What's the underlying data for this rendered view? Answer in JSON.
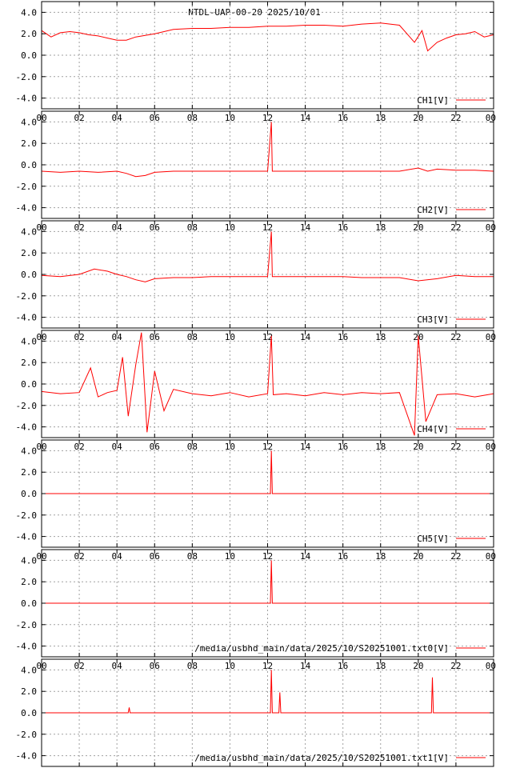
{
  "chart_title": "NTDL-UAP-00-20 2025/10/01",
  "colors": {
    "trace": "#ff0000",
    "grid": "#a0a0a0",
    "frame": "#000000"
  },
  "chart_data": [
    {
      "type": "line",
      "legend": "CH1[V]",
      "x_ticks": [
        "00",
        "02",
        "04",
        "06",
        "08",
        "10",
        "12",
        "14",
        "16",
        "18",
        "20",
        "22",
        "00"
      ],
      "xlim": [
        0,
        24
      ],
      "y_ticks": [
        "4.0",
        "2.0",
        "0.0",
        "-2.0",
        "-4.0"
      ],
      "ylim": [
        -5,
        5
      ],
      "grid": true,
      "legend_position": "bottom-right",
      "x": [
        0,
        0.5,
        1,
        1.5,
        2,
        2.5,
        3,
        3.5,
        4,
        4.5,
        5,
        6,
        7,
        8,
        9,
        10,
        11,
        12,
        13,
        14,
        15,
        16,
        17,
        18,
        19,
        19.8,
        20.2,
        20.5,
        21,
        21.5,
        22,
        22.5,
        23,
        23.5,
        24
      ],
      "values": [
        2.3,
        1.7,
        2.1,
        2.2,
        2.1,
        1.9,
        1.8,
        1.6,
        1.4,
        1.4,
        1.7,
        2.0,
        2.4,
        2.5,
        2.5,
        2.6,
        2.6,
        2.7,
        2.7,
        2.8,
        2.8,
        2.7,
        2.9,
        3.0,
        2.8,
        1.2,
        2.3,
        0.4,
        1.2,
        1.6,
        1.9,
        2.0,
        2.2,
        1.7,
        1.9
      ]
    },
    {
      "type": "line",
      "legend": "CH2[V]",
      "x_ticks": [
        "00",
        "02",
        "04",
        "06",
        "08",
        "10",
        "12",
        "14",
        "16",
        "18",
        "20",
        "22",
        "00"
      ],
      "xlim": [
        0,
        24
      ],
      "y_ticks": [
        "4.0",
        "2.0",
        "0.0",
        "-2.0",
        "-4.0"
      ],
      "ylim": [
        -5,
        5
      ],
      "grid": true,
      "legend_position": "bottom-right",
      "x": [
        0,
        1,
        2,
        3,
        4,
        4.5,
        5,
        5.5,
        6,
        7,
        8,
        9,
        10,
        11,
        12,
        12.2,
        12.25,
        12.3,
        13,
        14,
        15,
        16,
        17,
        18,
        19,
        20,
        20.5,
        21,
        22,
        23,
        24
      ],
      "values": [
        -0.6,
        -0.7,
        -0.6,
        -0.7,
        -0.6,
        -0.8,
        -1.1,
        -1.0,
        -0.7,
        -0.6,
        -0.6,
        -0.6,
        -0.6,
        -0.6,
        -0.6,
        4.0,
        -0.6,
        -0.6,
        -0.6,
        -0.6,
        -0.6,
        -0.6,
        -0.6,
        -0.6,
        -0.6,
        -0.3,
        -0.6,
        -0.4,
        -0.5,
        -0.5,
        -0.6
      ]
    },
    {
      "type": "line",
      "legend": "CH3[V]",
      "x_ticks": [
        "00",
        "02",
        "04",
        "06",
        "08",
        "10",
        "12",
        "14",
        "16",
        "18",
        "20",
        "22",
        "00"
      ],
      "xlim": [
        0,
        24
      ],
      "y_ticks": [
        "4.0",
        "2.0",
        "0.0",
        "-2.0",
        "-4.0"
      ],
      "ylim": [
        -5,
        5
      ],
      "grid": true,
      "legend_position": "bottom-right",
      "x": [
        0,
        1,
        2,
        2.8,
        3.5,
        4,
        4.5,
        5,
        5.5,
        6,
        7,
        8,
        9,
        10,
        11,
        12,
        12.2,
        12.25,
        12.3,
        13,
        14,
        15,
        16,
        17,
        18,
        19,
        20,
        21,
        22,
        23,
        24
      ],
      "values": [
        -0.1,
        -0.2,
        0.0,
        0.5,
        0.3,
        0.0,
        -0.2,
        -0.5,
        -0.7,
        -0.4,
        -0.3,
        -0.3,
        -0.2,
        -0.2,
        -0.2,
        -0.2,
        4.0,
        -0.2,
        -0.2,
        -0.2,
        -0.2,
        -0.2,
        -0.2,
        -0.3,
        -0.3,
        -0.3,
        -0.6,
        -0.4,
        -0.1,
        -0.2,
        -0.2
      ]
    },
    {
      "type": "line",
      "legend": "CH4[V]",
      "x_ticks": [
        "00",
        "02",
        "04",
        "06",
        "08",
        "10",
        "12",
        "14",
        "16",
        "18",
        "20",
        "22",
        "00"
      ],
      "xlim": [
        0,
        24
      ],
      "y_ticks": [
        "4.0",
        "2.0",
        "0.0",
        "-2.0",
        "-4.0"
      ],
      "ylim": [
        -5,
        5
      ],
      "grid": true,
      "legend_position": "bottom-right",
      "x": [
        0,
        1,
        2,
        2.6,
        3,
        3.5,
        4,
        4.3,
        4.6,
        5,
        5.3,
        5.6,
        6,
        6.5,
        7,
        8,
        9,
        10,
        11,
        12,
        12.2,
        12.3,
        13,
        14,
        15,
        16,
        17,
        18,
        19,
        19.8,
        20,
        20.4,
        21,
        22,
        23,
        24
      ],
      "values": [
        -0.7,
        -0.9,
        -0.8,
        1.5,
        -1.2,
        -0.8,
        -0.6,
        2.5,
        -3.0,
        1.8,
        4.8,
        -4.5,
        1.2,
        -2.5,
        -0.5,
        -0.9,
        -1.1,
        -0.8,
        -1.2,
        -0.9,
        4.5,
        -1.0,
        -0.9,
        -1.1,
        -0.8,
        -1.0,
        -0.8,
        -0.9,
        -0.8,
        -4.8,
        4.5,
        -3.5,
        -1.0,
        -0.9,
        -1.2,
        -0.9
      ]
    },
    {
      "type": "line",
      "legend": "CH5[V]",
      "x_ticks": [
        "00",
        "02",
        "04",
        "06",
        "08",
        "10",
        "12",
        "14",
        "16",
        "18",
        "20",
        "22",
        "00"
      ],
      "xlim": [
        0,
        24
      ],
      "y_ticks": [
        "4.0",
        "2.0",
        "0.0",
        "-2.0",
        "-4.0"
      ],
      "ylim": [
        -5,
        5
      ],
      "grid": true,
      "legend_position": "bottom-right",
      "x": [
        0,
        12.15,
        12.2,
        12.25,
        24
      ],
      "values": [
        0.0,
        0.0,
        4.0,
        0.0,
        0.0
      ]
    },
    {
      "type": "line",
      "legend": "/media/usbhd_main/data/2025/10/S20251001.txt0[V]",
      "x_ticks": [
        "00",
        "02",
        "04",
        "06",
        "08",
        "10",
        "12",
        "14",
        "16",
        "18",
        "20",
        "22",
        "00"
      ],
      "xlim": [
        0,
        24
      ],
      "y_ticks": [
        "4.0",
        "2.0",
        "0.0",
        "-2.0",
        "-4.0"
      ],
      "ylim": [
        -5,
        5
      ],
      "grid": true,
      "legend_position": "bottom-right",
      "x": [
        0,
        12.15,
        12.2,
        12.25,
        24
      ],
      "values": [
        0.0,
        0.0,
        4.0,
        0.0,
        0.0
      ]
    },
    {
      "type": "line",
      "legend": "/media/usbhd_main/data/2025/10/S20251001.txt1[V]",
      "x_ticks": [
        "00",
        "02",
        "04",
        "06",
        "08",
        "10",
        "12",
        "14",
        "16",
        "18",
        "20",
        "22",
        "00"
      ],
      "xlim": [
        0,
        24
      ],
      "y_ticks": [
        "4.0",
        "2.0",
        "0.0",
        "-2.0",
        "-4.0"
      ],
      "ylim": [
        -5,
        5
      ],
      "grid": true,
      "legend_position": "bottom-right",
      "x": [
        0,
        4.6,
        4.65,
        4.7,
        12.15,
        12.2,
        12.25,
        12.6,
        12.65,
        12.7,
        20.7,
        20.75,
        20.8,
        24
      ],
      "values": [
        0.0,
        0.0,
        0.5,
        0.0,
        0.0,
        4.0,
        0.0,
        0.0,
        1.9,
        0.0,
        0.0,
        3.3,
        0.0,
        0.0
      ]
    }
  ]
}
